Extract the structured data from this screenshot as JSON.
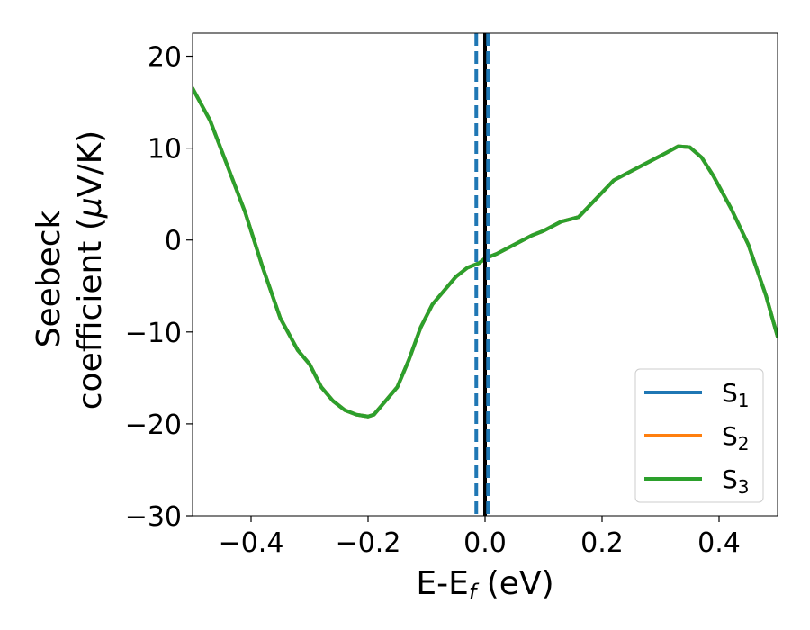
{
  "chart_data": {
    "type": "line",
    "xlabel": "E-E",
    "xlabel_sub": "f",
    "xlabel_unit": " (eV)",
    "ylabel_line1": "Seebeck",
    "ylabel_line2_pre": "coefficient  (",
    "ylabel_line2_mu": "μ",
    "ylabel_line2_post": "V/K)",
    "xlim": [
      -0.5,
      0.5
    ],
    "ylim": [
      -30,
      22.5
    ],
    "xticks": [
      -0.4,
      -0.2,
      0.0,
      0.2,
      0.4
    ],
    "xtick_labels": [
      "−0.4",
      "−0.2",
      "0.0",
      "0.2",
      "0.4"
    ],
    "yticks": [
      -30,
      -20,
      -10,
      0,
      10,
      20
    ],
    "ytick_labels": [
      "−30",
      "−20",
      "−10",
      "0",
      "10",
      "20"
    ],
    "grid": false,
    "legend_position": "lower-right",
    "series": [
      {
        "name": "S",
        "sub": "1",
        "color": "#1f77b4",
        "x": [
          -0.5,
          -0.47,
          -0.44,
          -0.41,
          -0.38,
          -0.35,
          -0.32,
          -0.3,
          -0.28,
          -0.26,
          -0.24,
          -0.22,
          -0.2,
          -0.19,
          -0.17,
          -0.15,
          -0.13,
          -0.11,
          -0.09,
          -0.07,
          -0.05,
          -0.03,
          -0.01,
          0.0,
          0.02,
          0.05,
          0.08,
          0.1,
          0.13,
          0.16,
          0.19,
          0.22,
          0.25,
          0.28,
          0.31,
          0.33,
          0.35,
          0.37,
          0.39,
          0.42,
          0.45,
          0.48,
          0.5
        ],
        "y": [
          16.5,
          13.0,
          8.0,
          3.0,
          -3.0,
          -8.5,
          -12.0,
          -13.5,
          -16.0,
          -17.5,
          -18.5,
          -19.0,
          -19.2,
          -19.0,
          -17.5,
          -16.0,
          -13.0,
          -9.5,
          -7.0,
          -5.5,
          -4.0,
          -3.0,
          -2.5,
          -2.0,
          -1.5,
          -0.5,
          0.5,
          1.0,
          2.0,
          2.5,
          4.5,
          6.5,
          7.5,
          8.5,
          9.5,
          10.2,
          10.1,
          9.0,
          7.0,
          3.5,
          -0.5,
          -6.0,
          -10.5
        ]
      },
      {
        "name": "S",
        "sub": "2",
        "color": "#ff7f0e",
        "x": [
          -0.5,
          -0.47,
          -0.44,
          -0.41,
          -0.38,
          -0.35,
          -0.32,
          -0.3,
          -0.28,
          -0.26,
          -0.24,
          -0.22,
          -0.2,
          -0.19,
          -0.17,
          -0.15,
          -0.13,
          -0.11,
          -0.09,
          -0.07,
          -0.05,
          -0.03,
          -0.01,
          0.0,
          0.02,
          0.05,
          0.08,
          0.1,
          0.13,
          0.16,
          0.19,
          0.22,
          0.25,
          0.28,
          0.31,
          0.33,
          0.35,
          0.37,
          0.39,
          0.42,
          0.45,
          0.48,
          0.5
        ],
        "y": [
          16.5,
          13.0,
          8.0,
          3.0,
          -3.0,
          -8.5,
          -12.0,
          -13.5,
          -16.0,
          -17.5,
          -18.5,
          -19.0,
          -19.2,
          -19.0,
          -17.5,
          -16.0,
          -13.0,
          -9.5,
          -7.0,
          -5.5,
          -4.0,
          -3.0,
          -2.5,
          -2.0,
          -1.5,
          -0.5,
          0.5,
          1.0,
          2.0,
          2.5,
          4.5,
          6.5,
          7.5,
          8.5,
          9.5,
          10.2,
          10.1,
          9.0,
          7.0,
          3.5,
          -0.5,
          -6.0,
          -10.5
        ]
      },
      {
        "name": "S",
        "sub": "3",
        "color": "#2ca02c",
        "x": [
          -0.5,
          -0.47,
          -0.44,
          -0.41,
          -0.38,
          -0.35,
          -0.32,
          -0.3,
          -0.28,
          -0.26,
          -0.24,
          -0.22,
          -0.2,
          -0.19,
          -0.17,
          -0.15,
          -0.13,
          -0.11,
          -0.09,
          -0.07,
          -0.05,
          -0.03,
          -0.01,
          0.0,
          0.02,
          0.05,
          0.08,
          0.1,
          0.13,
          0.16,
          0.19,
          0.22,
          0.25,
          0.28,
          0.31,
          0.33,
          0.35,
          0.37,
          0.39,
          0.42,
          0.45,
          0.48,
          0.5
        ],
        "y": [
          16.5,
          13.0,
          8.0,
          3.0,
          -3.0,
          -8.5,
          -12.0,
          -13.5,
          -16.0,
          -17.5,
          -18.5,
          -19.0,
          -19.2,
          -19.0,
          -17.5,
          -16.0,
          -13.0,
          -9.5,
          -7.0,
          -5.5,
          -4.0,
          -3.0,
          -2.5,
          -2.0,
          -1.5,
          -0.5,
          0.5,
          1.0,
          2.0,
          2.5,
          4.5,
          6.5,
          7.5,
          8.5,
          9.5,
          10.2,
          10.1,
          9.0,
          7.0,
          3.5,
          -0.5,
          -6.0,
          -10.5
        ]
      }
    ],
    "vertical_lines": [
      {
        "x": 0.0,
        "style": "solid",
        "color": "#000000"
      },
      {
        "x": -0.015,
        "style": "dashed",
        "color": "#1f77b4"
      },
      {
        "x": 0.005,
        "style": "dashed",
        "color": "#1f77b4"
      }
    ]
  }
}
